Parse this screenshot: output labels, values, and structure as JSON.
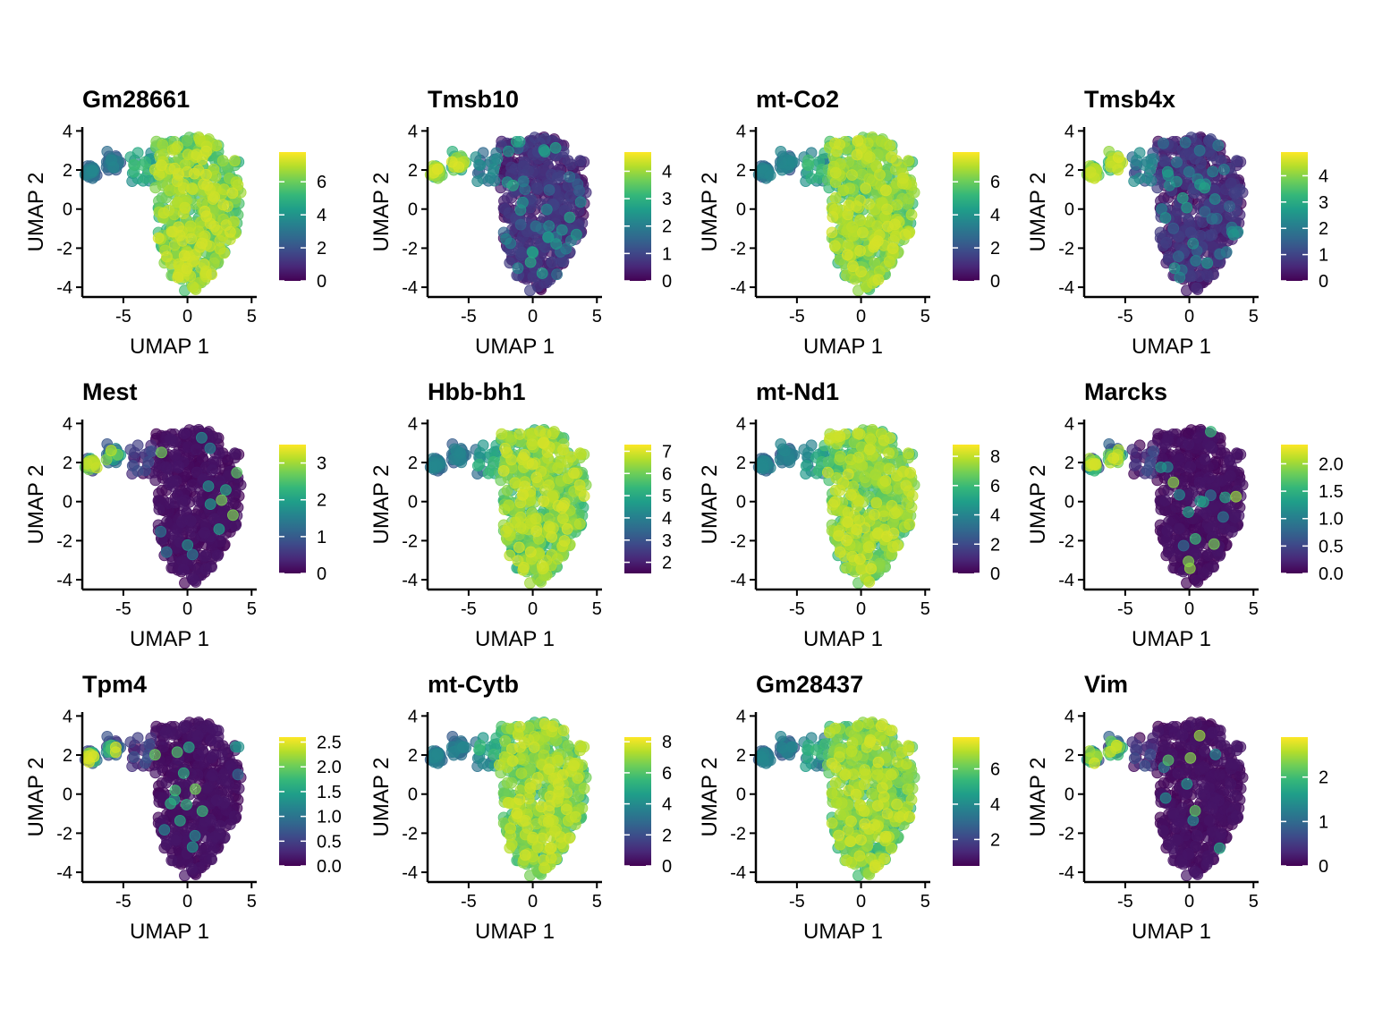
{
  "figure": {
    "colormap": "viridis",
    "viridis_stops": [
      "#440154",
      "#482878",
      "#3e4989",
      "#31688e",
      "#26828e",
      "#1f9e89",
      "#35b779",
      "#6ece58",
      "#b5de2b",
      "#fde725"
    ]
  },
  "chart_data": [
    {
      "type": "scatter",
      "title": "Gm28661",
      "xlabel": "UMAP 1",
      "ylabel": "UMAP 2",
      "xlim": [
        -8.2,
        5.4
      ],
      "ylim": [
        -4.5,
        4.2
      ],
      "xticks": [
        "-5",
        "0",
        "5"
      ],
      "yticks": [
        "-4",
        "-2",
        "0",
        "2",
        "4"
      ],
      "color_range": [
        0,
        7.8
      ],
      "color_ticks": [
        "0",
        "2",
        "4",
        "6"
      ],
      "expression_pattern": "high_main"
    },
    {
      "type": "scatter",
      "title": "Tmsb10",
      "xlabel": "UMAP 1",
      "ylabel": "UMAP 2",
      "xlim": [
        -8.2,
        5.4
      ],
      "ylim": [
        -4.5,
        4.2
      ],
      "xticks": [
        "-5",
        "0",
        "5"
      ],
      "yticks": [
        "-4",
        "-2",
        "0",
        "2",
        "4"
      ],
      "color_range": [
        0,
        4.7
      ],
      "color_ticks": [
        "0",
        "1",
        "2",
        "3",
        "4"
      ],
      "expression_pattern": "high_branch"
    },
    {
      "type": "scatter",
      "title": "mt-Co2",
      "xlabel": "UMAP 1",
      "ylabel": "UMAP 2",
      "xlim": [
        -8.2,
        5.4
      ],
      "ylim": [
        -4.5,
        4.2
      ],
      "xticks": [
        "-5",
        "0",
        "5"
      ],
      "yticks": [
        "-4",
        "-2",
        "0",
        "2",
        "4"
      ],
      "color_range": [
        0,
        7.8
      ],
      "color_ticks": [
        "0",
        "2",
        "4",
        "6"
      ],
      "expression_pattern": "high_main"
    },
    {
      "type": "scatter",
      "title": "Tmsb4x",
      "xlabel": "UMAP 1",
      "ylabel": "UMAP 2",
      "xlim": [
        -8.2,
        5.4
      ],
      "ylim": [
        -4.5,
        4.2
      ],
      "xticks": [
        "-5",
        "0",
        "5"
      ],
      "yticks": [
        "-4",
        "-2",
        "0",
        "2",
        "4"
      ],
      "color_range": [
        0,
        4.9
      ],
      "color_ticks": [
        "0",
        "1",
        "2",
        "3",
        "4"
      ],
      "expression_pattern": "high_branch"
    },
    {
      "type": "scatter",
      "title": "Mest",
      "xlabel": "UMAP 1",
      "ylabel": "UMAP 2",
      "xlim": [
        -8.2,
        5.4
      ],
      "ylim": [
        -4.5,
        4.2
      ],
      "xticks": [
        "-5",
        "0",
        "5"
      ],
      "yticks": [
        "-4",
        "-2",
        "0",
        "2",
        "4"
      ],
      "color_range": [
        0,
        3.5
      ],
      "color_ticks": [
        "0",
        "1",
        "2",
        "3"
      ],
      "expression_pattern": "high_branch_sparse"
    },
    {
      "type": "scatter",
      "title": "Hbb-bh1",
      "xlabel": "UMAP 1",
      "ylabel": "UMAP 2",
      "xlim": [
        -8.2,
        5.4
      ],
      "ylim": [
        -4.5,
        4.2
      ],
      "xticks": [
        "-5",
        "0",
        "5"
      ],
      "yticks": [
        "-4",
        "-2",
        "0",
        "2",
        "4"
      ],
      "color_range": [
        1.5,
        7.3
      ],
      "color_ticks": [
        "2",
        "3",
        "4",
        "5",
        "6",
        "7"
      ],
      "expression_pattern": "high_main"
    },
    {
      "type": "scatter",
      "title": "mt-Nd1",
      "xlabel": "UMAP 1",
      "ylabel": "UMAP 2",
      "xlim": [
        -8.2,
        5.4
      ],
      "ylim": [
        -4.5,
        4.2
      ],
      "xticks": [
        "-5",
        "0",
        "5"
      ],
      "yticks": [
        "-4",
        "-2",
        "0",
        "2",
        "4"
      ],
      "color_range": [
        0,
        8.8
      ],
      "color_ticks": [
        "0",
        "2",
        "4",
        "6",
        "8"
      ],
      "expression_pattern": "high_main"
    },
    {
      "type": "scatter",
      "title": "Marcks",
      "xlabel": "UMAP 1",
      "ylabel": "UMAP 2",
      "xlim": [
        -8.2,
        5.4
      ],
      "ylim": [
        -4.5,
        4.2
      ],
      "xticks": [
        "-5",
        "0",
        "5"
      ],
      "yticks": [
        "-4",
        "-2",
        "0",
        "2",
        "4"
      ],
      "color_range": [
        0,
        2.35
      ],
      "color_ticks": [
        "0.0",
        "0.5",
        "1.0",
        "1.5",
        "2.0"
      ],
      "expression_pattern": "high_branch_sparse"
    },
    {
      "type": "scatter",
      "title": "Tpm4",
      "xlabel": "UMAP 1",
      "ylabel": "UMAP 2",
      "xlim": [
        -8.2,
        5.4
      ],
      "ylim": [
        -4.5,
        4.2
      ],
      "xticks": [
        "-5",
        "0",
        "5"
      ],
      "yticks": [
        "-4",
        "-2",
        "0",
        "2",
        "4"
      ],
      "color_range": [
        0,
        2.6
      ],
      "color_ticks": [
        "0.0",
        "0.5",
        "1.0",
        "1.5",
        "2.0",
        "2.5"
      ],
      "expression_pattern": "high_branch_sparse"
    },
    {
      "type": "scatter",
      "title": "mt-Cytb",
      "xlabel": "UMAP 1",
      "ylabel": "UMAP 2",
      "xlim": [
        -8.2,
        5.4
      ],
      "ylim": [
        -4.5,
        4.2
      ],
      "xticks": [
        "-5",
        "0",
        "5"
      ],
      "yticks": [
        "-4",
        "-2",
        "0",
        "2",
        "4"
      ],
      "color_range": [
        0,
        8.3
      ],
      "color_ticks": [
        "0",
        "2",
        "4",
        "6",
        "8"
      ],
      "expression_pattern": "high_main"
    },
    {
      "type": "scatter",
      "title": "Gm28437",
      "xlabel": "UMAP 1",
      "ylabel": "UMAP 2",
      "xlim": [
        -8.2,
        5.4
      ],
      "ylim": [
        -4.5,
        4.2
      ],
      "xticks": [
        "-5",
        "0",
        "5"
      ],
      "yticks": [
        "-4",
        "-2",
        "0",
        "2",
        "4"
      ],
      "color_range": [
        0.5,
        7.8
      ],
      "color_ticks": [
        "2",
        "4",
        "6"
      ],
      "expression_pattern": "high_main"
    },
    {
      "type": "scatter",
      "title": "Vim",
      "xlabel": "UMAP 1",
      "ylabel": "UMAP 2",
      "xlim": [
        -8.2,
        5.4
      ],
      "ylim": [
        -4.5,
        4.2
      ],
      "xticks": [
        "-5",
        "0",
        "5"
      ],
      "yticks": [
        "-4",
        "-2",
        "0",
        "2",
        "4"
      ],
      "color_range": [
        0,
        2.9
      ],
      "color_ticks": [
        "0",
        "1",
        "2"
      ],
      "expression_pattern": "high_branch_sparse"
    }
  ]
}
